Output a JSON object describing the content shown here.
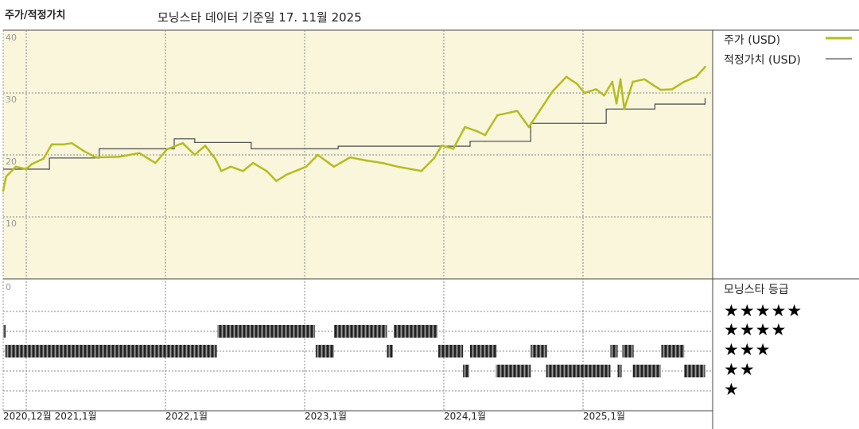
{
  "header": {
    "title": "주가/적정가치",
    "subtitle": "모닝스타 데이터 기준일 17. 11월 2025"
  },
  "legend": {
    "price_label": "주가 (USD)",
    "fair_value_label": "적정가치 (USD)",
    "rating_title": "모닝스타 등급"
  },
  "colors": {
    "price": "#b5bd1f",
    "fair_value": "#555555",
    "plot_bg": "#faf6dc",
    "rating_bar": "#3c3c3c"
  },
  "chart_data": [
    {
      "type": "line",
      "ylim": [
        0,
        40
      ],
      "yticks": [
        "40",
        "30",
        "20",
        "10"
      ],
      "grid": true,
      "legend_placement": "right",
      "series": [
        {
          "name": "주가 (USD)",
          "points": [
            [
              "2020-11-01",
              14.2
            ],
            [
              "2020-11-09",
              16.5
            ],
            [
              "2020-12-04",
              18.1
            ],
            [
              "2021-01-01",
              17.7
            ],
            [
              "2021-01-15",
              18.5
            ],
            [
              "2021-02-16",
              19.4
            ],
            [
              "2021-03-07",
              21.7
            ],
            [
              "2021-04-08",
              21.7
            ],
            [
              "2021-04-29",
              21.9
            ],
            [
              "2021-05-31",
              20.6
            ],
            [
              "2021-07-01",
              19.6
            ],
            [
              "2021-09-02",
              19.7
            ],
            [
              "2021-10-24",
              20.3
            ],
            [
              "2021-12-05",
              18.7
            ],
            [
              "2022-01-05",
              20.9
            ],
            [
              "2022-02-16",
              21.9
            ],
            [
              "2022-03-17",
              20.0
            ],
            [
              "2022-04-14",
              21.5
            ],
            [
              "2022-05-10",
              19.4
            ],
            [
              "2022-05-26",
              17.4
            ],
            [
              "2022-06-20",
              18.1
            ],
            [
              "2022-07-22",
              17.4
            ],
            [
              "2022-08-18",
              18.7
            ],
            [
              "2022-09-23",
              17.4
            ],
            [
              "2022-10-18",
              15.8
            ],
            [
              "2022-11-14",
              16.8
            ],
            [
              "2023-01-05",
              18.1
            ],
            [
              "2023-02-05",
              20.0
            ],
            [
              "2023-03-17",
              18.1
            ],
            [
              "2023-04-29",
              19.6
            ],
            [
              "2023-06-10",
              19.1
            ],
            [
              "2023-07-22",
              18.7
            ],
            [
              "2023-09-02",
              18.1
            ],
            [
              "2023-11-03",
              17.4
            ],
            [
              "2023-12-05",
              19.4
            ],
            [
              "2023-12-26",
              21.5
            ],
            [
              "2024-01-26",
              21.0
            ],
            [
              "2024-02-26",
              24.5
            ],
            [
              "2024-03-28",
              23.8
            ],
            [
              "2024-04-18",
              23.2
            ],
            [
              "2024-05-20",
              26.4
            ],
            [
              "2024-07-11",
              27.1
            ],
            [
              "2024-08-11",
              24.5
            ],
            [
              "2024-09-12",
              27.4
            ],
            [
              "2024-10-13",
              30.3
            ],
            [
              "2024-11-18",
              32.6
            ],
            [
              "2024-12-15",
              31.5
            ],
            [
              "2025-01-05",
              30.0
            ],
            [
              "2025-02-05",
              30.6
            ],
            [
              "2025-02-26",
              29.6
            ],
            [
              "2025-03-17",
              31.8
            ],
            [
              "2025-03-28",
              28.3
            ],
            [
              "2025-04-08",
              32.2
            ],
            [
              "2025-04-18",
              27.4
            ],
            [
              "2025-05-10",
              31.8
            ],
            [
              "2025-06-10",
              32.2
            ],
            [
              "2025-07-22",
              30.5
            ],
            [
              "2025-08-22",
              30.6
            ],
            [
              "2025-09-23",
              31.8
            ],
            [
              "2025-10-24",
              32.6
            ],
            [
              "2025-11-17",
              34.2
            ]
          ]
        },
        {
          "name": "적정가치 (USD)",
          "step": true,
          "points": [
            [
              "2020-11-01",
              17.7
            ],
            [
              "2021-03-01",
              19.5
            ],
            [
              "2021-07-10",
              21.0
            ],
            [
              "2022-01-24",
              22.6
            ],
            [
              "2022-03-17",
              22.0
            ],
            [
              "2022-08-13",
              21.0
            ],
            [
              "2023-03-28",
              21.4
            ],
            [
              "2024-03-09",
              22.2
            ],
            [
              "2024-08-16",
              25.1
            ],
            [
              "2025-03-01",
              27.4
            ],
            [
              "2025-07-07",
              28.2
            ],
            [
              "2025-11-17",
              29.2
            ]
          ]
        }
      ]
    },
    {
      "type": "bar",
      "title": "모닝스타 등급",
      "ylabel_tick": "0",
      "rating_levels": [
        "★★★★★",
        "★★★★",
        "★★★",
        "★★",
        "★"
      ],
      "xticks": [
        "2020,12월",
        "2021,1월",
        "2022,1월",
        "2023,1월",
        "2024,1월",
        "2025,1월"
      ],
      "xtick_dates": [
        "2020-12-01",
        "2021-01-01",
        "2022-01-01",
        "2023-01-01",
        "2024-01-01",
        "2025-01-01"
      ],
      "ratings": [
        {
          "stars": 4,
          "from": "2020-11-01",
          "to": "2020-11-07"
        },
        {
          "stars": 3,
          "from": "2020-11-07",
          "to": "2022-05-14"
        },
        {
          "stars": 4,
          "from": "2022-05-16",
          "to": "2023-01-28"
        },
        {
          "stars": 3,
          "from": "2023-01-30",
          "to": "2023-03-17"
        },
        {
          "stars": 4,
          "from": "2023-03-17",
          "to": "2023-08-04"
        },
        {
          "stars": 3,
          "from": "2023-08-04",
          "to": "2023-08-19"
        },
        {
          "stars": 4,
          "from": "2023-08-22",
          "to": "2023-12-15"
        },
        {
          "stars": 3,
          "from": "2023-12-17",
          "to": "2024-02-21"
        },
        {
          "stars": 2,
          "from": "2024-02-21",
          "to": "2024-03-07"
        },
        {
          "stars": 3,
          "from": "2024-03-09",
          "to": "2024-05-18"
        },
        {
          "stars": 2,
          "from": "2024-05-16",
          "to": "2024-08-16"
        },
        {
          "stars": 3,
          "from": "2024-08-16",
          "to": "2024-09-28"
        },
        {
          "stars": 2,
          "from": "2024-09-26",
          "to": "2025-03-12"
        },
        {
          "stars": 3,
          "from": "2025-03-12",
          "to": "2025-03-31"
        },
        {
          "stars": 2,
          "from": "2025-03-31",
          "to": "2025-04-11"
        },
        {
          "stars": 3,
          "from": "2025-04-13",
          "to": "2025-05-12"
        },
        {
          "stars": 2,
          "from": "2025-05-10",
          "to": "2025-07-22"
        },
        {
          "stars": 3,
          "from": "2025-07-24",
          "to": "2025-09-23"
        },
        {
          "stars": 2,
          "from": "2025-09-23",
          "to": "2025-11-17"
        }
      ]
    }
  ]
}
